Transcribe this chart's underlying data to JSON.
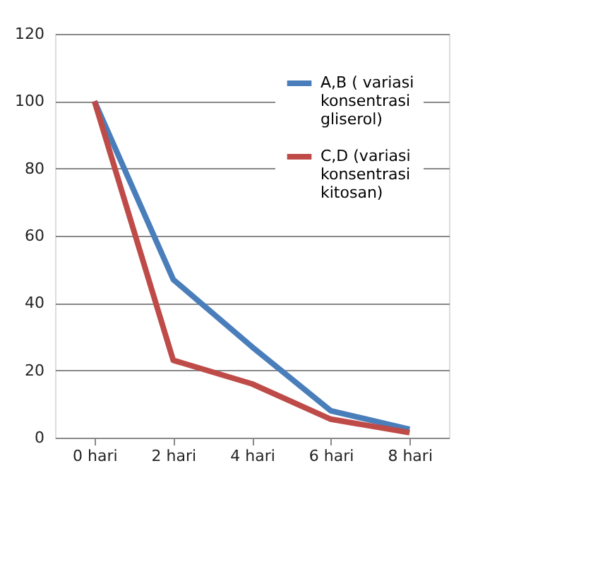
{
  "chart_data": {
    "type": "line",
    "categories": [
      "0 hari",
      "2 hari",
      "4 hari",
      "6 hari",
      "8 hari"
    ],
    "series": [
      {
        "name": "A,B ( variasi konsentrasi gliserol)",
        "color": "#4a7ebb",
        "values": [
          100,
          47,
          27,
          8,
          2.5
        ]
      },
      {
        "name": "C,D (variasi konsentrasi kitosan)",
        "color": "#be4b48",
        "values": [
          100,
          23,
          16,
          5.5,
          1.5
        ]
      }
    ],
    "ylim": [
      0,
      120
    ],
    "yticks": [
      0,
      20,
      40,
      60,
      80,
      100,
      120
    ],
    "grid": "y",
    "legend": "top right",
    "marker": "none",
    "line_style": "solid"
  }
}
